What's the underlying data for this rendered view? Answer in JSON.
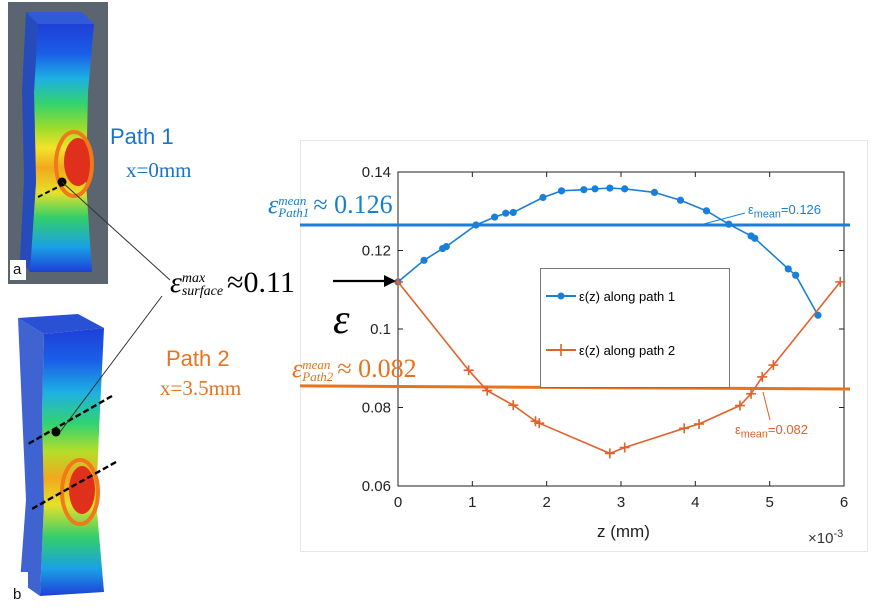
{
  "panels": {
    "a": "a",
    "b": "b",
    "path1": {
      "title": "Path 1",
      "position": "x=0mm",
      "color": "#1a73c9"
    },
    "path2": {
      "title": "Path 2",
      "position": "x=3.5mm",
      "color": "#e8731e"
    }
  },
  "annotations": {
    "mean_path1": {
      "value": "≈ 0.126",
      "symbol": "ε",
      "sup": "mean",
      "sub": "Path1"
    },
    "mean_path2": {
      "value": "≈ 0.082",
      "symbol": "ε",
      "sup": "mean",
      "sub": "Path2"
    },
    "max_surface": {
      "value": "≈0.11",
      "symbol": "ε",
      "sup": "max",
      "sub": "surface"
    },
    "eps_axis_symbol": "ε",
    "mean_line1_label": "=0.126",
    "mean_line2_label": "=0.082",
    "mean_line_prefix": "ε",
    "mean_line_sub": "mean"
  },
  "chart_data": {
    "type": "line",
    "xlabel": "z (mm)",
    "x_multiplier": "×10",
    "x_multiplier_exp": "-3",
    "xlim": [
      0,
      6
    ],
    "ylim": [
      0.06,
      0.14
    ],
    "xticks": [
      "0",
      "1",
      "2",
      "3",
      "4",
      "5",
      "6"
    ],
    "yticks": [
      "0.06",
      "0.08",
      "0.1",
      "0.12",
      "0.14"
    ],
    "series": [
      {
        "name": "ε(z) along path 1",
        "color": "#1a7fd8",
        "marker": "dot",
        "x": [
          0,
          0.35,
          0.6,
          0.65,
          1.05,
          1.3,
          1.45,
          1.55,
          1.95,
          2.2,
          2.5,
          2.65,
          2.85,
          3.05,
          3.45,
          3.8,
          4.15,
          4.45,
          4.75,
          4.8,
          5.25,
          5.35,
          5.65
        ],
        "y": [
          0.112,
          0.1175,
          0.1205,
          0.121,
          0.1265,
          0.1285,
          0.1295,
          0.1297,
          0.1335,
          0.1352,
          0.1355,
          0.1357,
          0.1359,
          0.1357,
          0.1348,
          0.1328,
          0.1301,
          0.1267,
          0.1237,
          0.1231,
          0.1153,
          0.1137,
          0.1035
        ]
      },
      {
        "name": "ε(z) along path 2",
        "color": "#e0622a",
        "marker": "plus",
        "x": [
          0,
          0.95,
          1.2,
          1.55,
          1.85,
          1.9,
          2.85,
          3.05,
          3.85,
          4.05,
          4.6,
          4.75,
          4.9,
          5.05,
          5.95
        ],
        "y": [
          0.112,
          0.0895,
          0.0843,
          0.0806,
          0.0765,
          0.076,
          0.0683,
          0.0698,
          0.0747,
          0.0758,
          0.0805,
          0.0835,
          0.0878,
          0.0908,
          0.112
        ]
      }
    ],
    "mean_lines": [
      {
        "y_start": 0.1265,
        "y_end": 0.1265,
        "color": "#1a7fd8"
      },
      {
        "y_start": 0.0855,
        "y_end": 0.0847,
        "color": "#e8731e"
      }
    ],
    "legend_position": "center-right"
  }
}
